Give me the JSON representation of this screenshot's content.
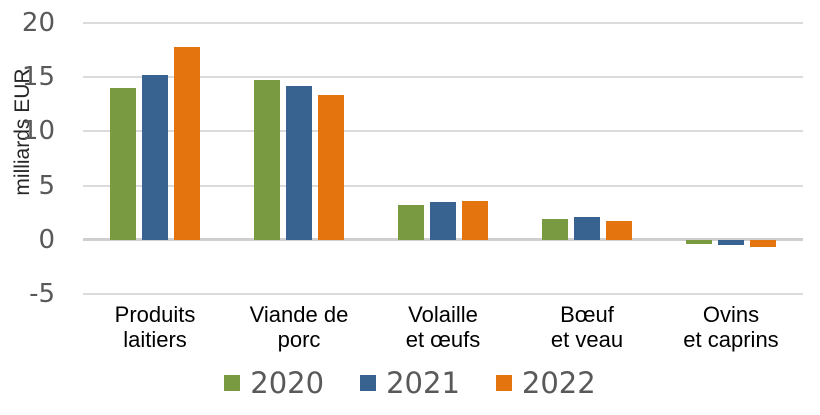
{
  "chart_data": {
    "type": "bar",
    "title": "",
    "xlabel": "",
    "ylabel": "milliards EUR",
    "ylim": [
      -5,
      20
    ],
    "yticks": [
      20,
      15,
      10,
      5,
      0,
      -5
    ],
    "grid": true,
    "legend_position": "bottom",
    "categories": [
      {
        "lines": [
          "Produits",
          "laitiers"
        ]
      },
      {
        "lines": [
          "Viande de",
          "porc"
        ]
      },
      {
        "lines": [
          "Volaille",
          "et œufs"
        ]
      },
      {
        "lines": [
          "Bœuf",
          "et veau"
        ]
      },
      {
        "lines": [
          "Ovins",
          "et caprins"
        ]
      }
    ],
    "series": [
      {
        "name": "2020",
        "color": "#7A9A41",
        "values": [
          14.0,
          14.7,
          3.2,
          1.9,
          -0.4
        ]
      },
      {
        "name": "2021",
        "color": "#38628F",
        "values": [
          15.2,
          14.2,
          3.5,
          2.1,
          -0.5
        ]
      },
      {
        "name": "2022",
        "color": "#E4740D",
        "values": [
          17.8,
          13.4,
          3.6,
          1.7,
          -0.7
        ]
      }
    ]
  },
  "style": {
    "background": "#FFFFFF",
    "gridline_color": "#DBDBDB",
    "zero_line_color": "#CFCFCF",
    "tick_label_color": "#595959",
    "category_label_color": "#000000",
    "axis_title_color": "#262626",
    "legend_text_color": "#595959"
  }
}
